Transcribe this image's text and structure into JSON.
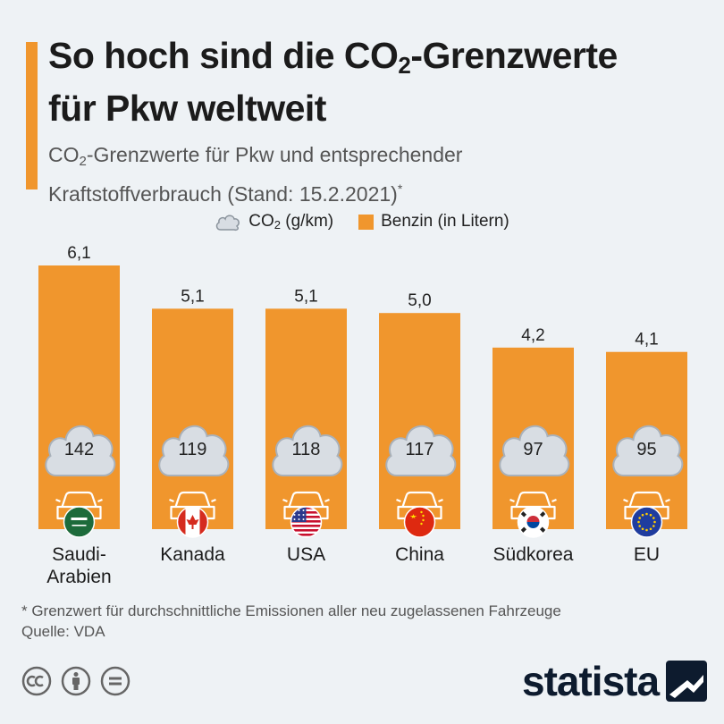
{
  "header": {
    "title_line1_pre": "So hoch sind die CO",
    "title_line1_sub": "2",
    "title_line1_post": "-Grenzwerte",
    "title_line2": "für Pkw weltweit",
    "subtitle_pre": "CO",
    "subtitle_sub": "2",
    "subtitle_mid": "-Grenzwerte für Pkw und entsprechender",
    "subtitle_line2": "Kraftstoffverbrauch (Stand: 15.2.2021)",
    "subtitle_sup": "*"
  },
  "legend": {
    "co2_pre": "CO",
    "co2_sub": "2",
    "co2_post": " (g/km)",
    "benzin": "Benzin (in Litern)"
  },
  "colors": {
    "bar": "#f0962d",
    "cloud": "#d8dde3",
    "cloud_stroke": "#a9b1ba",
    "car_stroke": "#ffffff"
  },
  "chart_data": {
    "type": "bar",
    "categories": [
      "Saudi-Arabien",
      "Kanada",
      "USA",
      "China",
      "Südkorea",
      "EU"
    ],
    "category_lines": [
      [
        "Saudi-",
        "Arabien"
      ],
      [
        "Kanada"
      ],
      [
        "USA"
      ],
      [
        "China"
      ],
      [
        "Südkorea"
      ],
      [
        "EU"
      ]
    ],
    "flags": [
      "saudi-arabia-flag",
      "canada-flag",
      "usa-flag",
      "china-flag",
      "south-korea-flag",
      "eu-flag"
    ],
    "series": [
      {
        "name": "Benzin (in Litern)",
        "values": [
          6.1,
          5.1,
          5.1,
          5.0,
          4.2,
          4.1
        ],
        "labels": [
          "6,1",
          "5,1",
          "5,1",
          "5,0",
          "4,2",
          "4,1"
        ]
      },
      {
        "name": "CO2 (g/km)",
        "values": [
          142,
          119,
          118,
          117,
          97,
          95
        ],
        "labels": [
          "142",
          "119",
          "118",
          "117",
          "97",
          "95"
        ]
      }
    ],
    "ylim": [
      0,
      6.1
    ]
  },
  "footer": {
    "footnote": "* Grenzwert für durchschnittliche Emissionen aller neu zugelassenen Fahrzeuge",
    "source": "Quelle: VDA",
    "logo": "statista",
    "license_icons": [
      "cc-icon",
      "attribution-icon",
      "no-derivatives-icon"
    ]
  }
}
